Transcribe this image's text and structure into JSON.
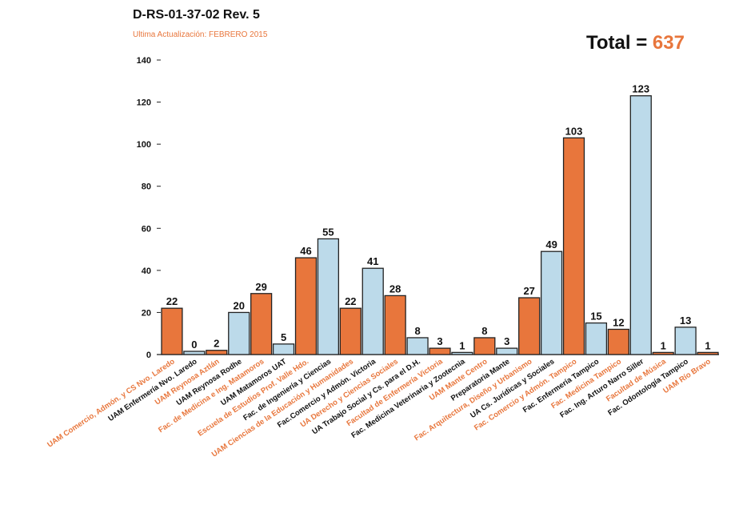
{
  "header": {
    "title": "D-RS-01-37-02 Rev. 5",
    "subtitle": "Ultima Actualización: FEBRERO 2015",
    "total_label": "Total = ",
    "total_value": "637"
  },
  "colors": {
    "orange": "#e8763c",
    "blue": "#bcdaea",
    "label_orange": "#e8763c",
    "label_dark": "#111111"
  },
  "chart_data": {
    "type": "bar",
    "title": "D-RS-01-37-02 Rev. 5",
    "ylim": [
      0,
      140
    ],
    "yticks": [
      0,
      20,
      40,
      60,
      80,
      100,
      120,
      140
    ],
    "categories": [
      "UAM Comercio, Admón. y CS Nvo. Laredo",
      "UAM Enfermería Nvo. Laredo",
      "UAM Reynosa Aztlán",
      "UAM Reynosa Rodhe",
      "Fac. de Medicina e Ing. Matamoros",
      "UAM Matamoros UAT",
      "Escuela de Estudios Prof. Valle Hdo.",
      "Fac. de Ingeniería y Ciencias",
      "UAM Ciencias de la Educación y Humanidades",
      "Fac.Comercio y Admón. Victoria",
      "UA Derecho y Ciencias Sociales",
      "UA Trabajo Social y Cs. para el D.H.",
      "Facultad de Enfermería Victoria",
      "Fac. Medicina Veterinaria y Zootecnia",
      "UAM Mante Centro",
      "Preparatoria Mante",
      "Fac. Arquitectura, Diseño y Urbanismo",
      "UA Cs. Jurídicas y Sociales",
      "Fac. Comercio y Admón. Tampico",
      "Fac. Enfermería Tampico",
      "Fac. Medicina Tampico",
      "Fac. Ing. Arturo Narro Siller",
      "Facultad de Música",
      "Fac. Odontología Tampico",
      "UAM Río Bravo"
    ],
    "values": [
      22,
      0,
      2,
      20,
      29,
      5,
      46,
      55,
      22,
      41,
      28,
      8,
      3,
      1,
      8,
      3,
      27,
      49,
      103,
      15,
      12,
      123,
      1,
      13,
      1
    ],
    "data_labels": [
      "22",
      "0",
      "2",
      "20",
      "29",
      "5",
      "46",
      "55",
      "22",
      "41",
      "28",
      "8",
      "3",
      "1",
      "8",
      "3",
      "27",
      "49",
      "103",
      "15",
      "12",
      "123",
      "1",
      "13",
      "1"
    ],
    "bar_colors": [
      "orange",
      "blue",
      "orange",
      "blue",
      "orange",
      "blue",
      "orange",
      "blue",
      "orange",
      "blue",
      "orange",
      "blue",
      "orange",
      "blue",
      "orange",
      "blue",
      "orange",
      "blue",
      "orange",
      "blue",
      "orange",
      "blue",
      "orange",
      "blue",
      "orange"
    ],
    "label_colors": [
      "orange",
      "dark",
      "orange",
      "dark",
      "orange",
      "dark",
      "orange",
      "dark",
      "orange",
      "dark",
      "orange",
      "dark",
      "orange",
      "dark",
      "orange",
      "dark",
      "orange",
      "dark",
      "orange",
      "dark",
      "orange",
      "dark",
      "orange",
      "dark",
      "orange"
    ]
  }
}
